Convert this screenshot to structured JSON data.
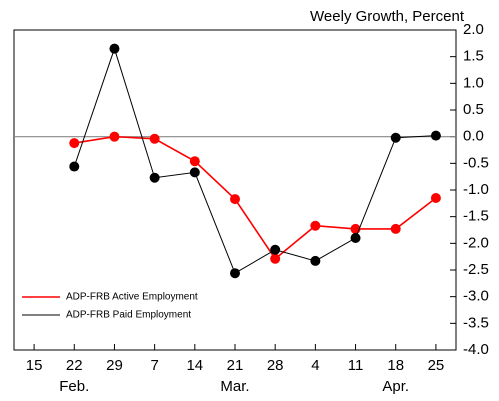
{
  "chart_data": {
    "type": "line",
    "title": "Weely Growth, Percent",
    "categories": [
      "15",
      "22",
      "29",
      "7",
      "14",
      "21",
      "28",
      "4",
      "11",
      "18",
      "25"
    ],
    "month_labels": [
      null,
      "Feb.",
      null,
      null,
      null,
      "Mar.",
      null,
      null,
      null,
      "Apr.",
      null
    ],
    "series": [
      {
        "name": "ADP-FRB Active Employment",
        "color": "#ff0000",
        "values": [
          null,
          -0.12,
          0.0,
          -0.04,
          -0.46,
          -1.17,
          -2.29,
          -1.67,
          -1.73,
          -1.73,
          -1.15
        ]
      },
      {
        "name": "ADP-FRB Paid Employment",
        "color": "#000000",
        "values": [
          null,
          -0.56,
          1.65,
          -0.77,
          -0.67,
          -2.56,
          -2.12,
          -2.33,
          -1.9,
          -0.02,
          0.02
        ]
      }
    ],
    "ylim": [
      -4,
      2
    ],
    "yticks": [
      {
        "value": 2,
        "label": "2.0"
      },
      {
        "value": 1.5,
        "label": "1.5"
      },
      {
        "value": 1,
        "label": "1.0"
      },
      {
        "value": 0.5,
        "label": "0.5"
      },
      {
        "value": 0,
        "label": "0.0"
      },
      {
        "value": -0.5,
        "label": "-0.5"
      },
      {
        "value": -1,
        "label": "-1.0"
      },
      {
        "value": -1.5,
        "label": "-1.5"
      },
      {
        "value": -2,
        "label": "-2.0"
      },
      {
        "value": -2.5,
        "label": "-2.5"
      },
      {
        "value": -3,
        "label": "-3.0"
      },
      {
        "value": -3.5,
        "label": "-3.5"
      },
      {
        "value": -4,
        "label": "-4.0"
      }
    ],
    "reference_line": 0,
    "legend_position": "lower left"
  }
}
